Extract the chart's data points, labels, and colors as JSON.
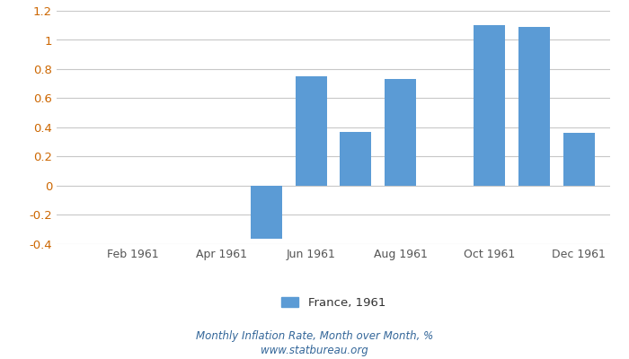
{
  "month_positions": [
    1,
    2,
    3,
    4,
    5,
    6,
    7,
    8,
    9,
    10,
    11,
    12
  ],
  "values": [
    null,
    null,
    null,
    null,
    -0.36,
    0.75,
    0.37,
    0.73,
    null,
    1.1,
    1.09,
    0.36
  ],
  "bar_color": "#5b9bd5",
  "ylim": [
    -0.4,
    1.2
  ],
  "yticks": [
    -0.4,
    -0.2,
    0.0,
    0.2,
    0.4,
    0.6,
    0.8,
    1.0,
    1.2
  ],
  "ytick_labels": [
    "-0.4",
    "-0.2",
    "0",
    "0.2",
    "0.4",
    "0.6",
    "0.8",
    "1",
    "1.2"
  ],
  "xtick_labels": [
    "Feb 1961",
    "Apr 1961",
    "Jun 1961",
    "Aug 1961",
    "Oct 1961",
    "Dec 1961"
  ],
  "xtick_positions": [
    2,
    4,
    6,
    8,
    10,
    12
  ],
  "legend_label": "France, 1961",
  "footer_line1": "Monthly Inflation Rate, Month over Month, %",
  "footer_line2": "www.statbureau.org",
  "background_color": "#ffffff",
  "grid_color": "#c8c8c8",
  "tick_color": "#cc6600",
  "xtick_color": "#555555",
  "footer_color": "#336699",
  "bar_width": 0.7
}
